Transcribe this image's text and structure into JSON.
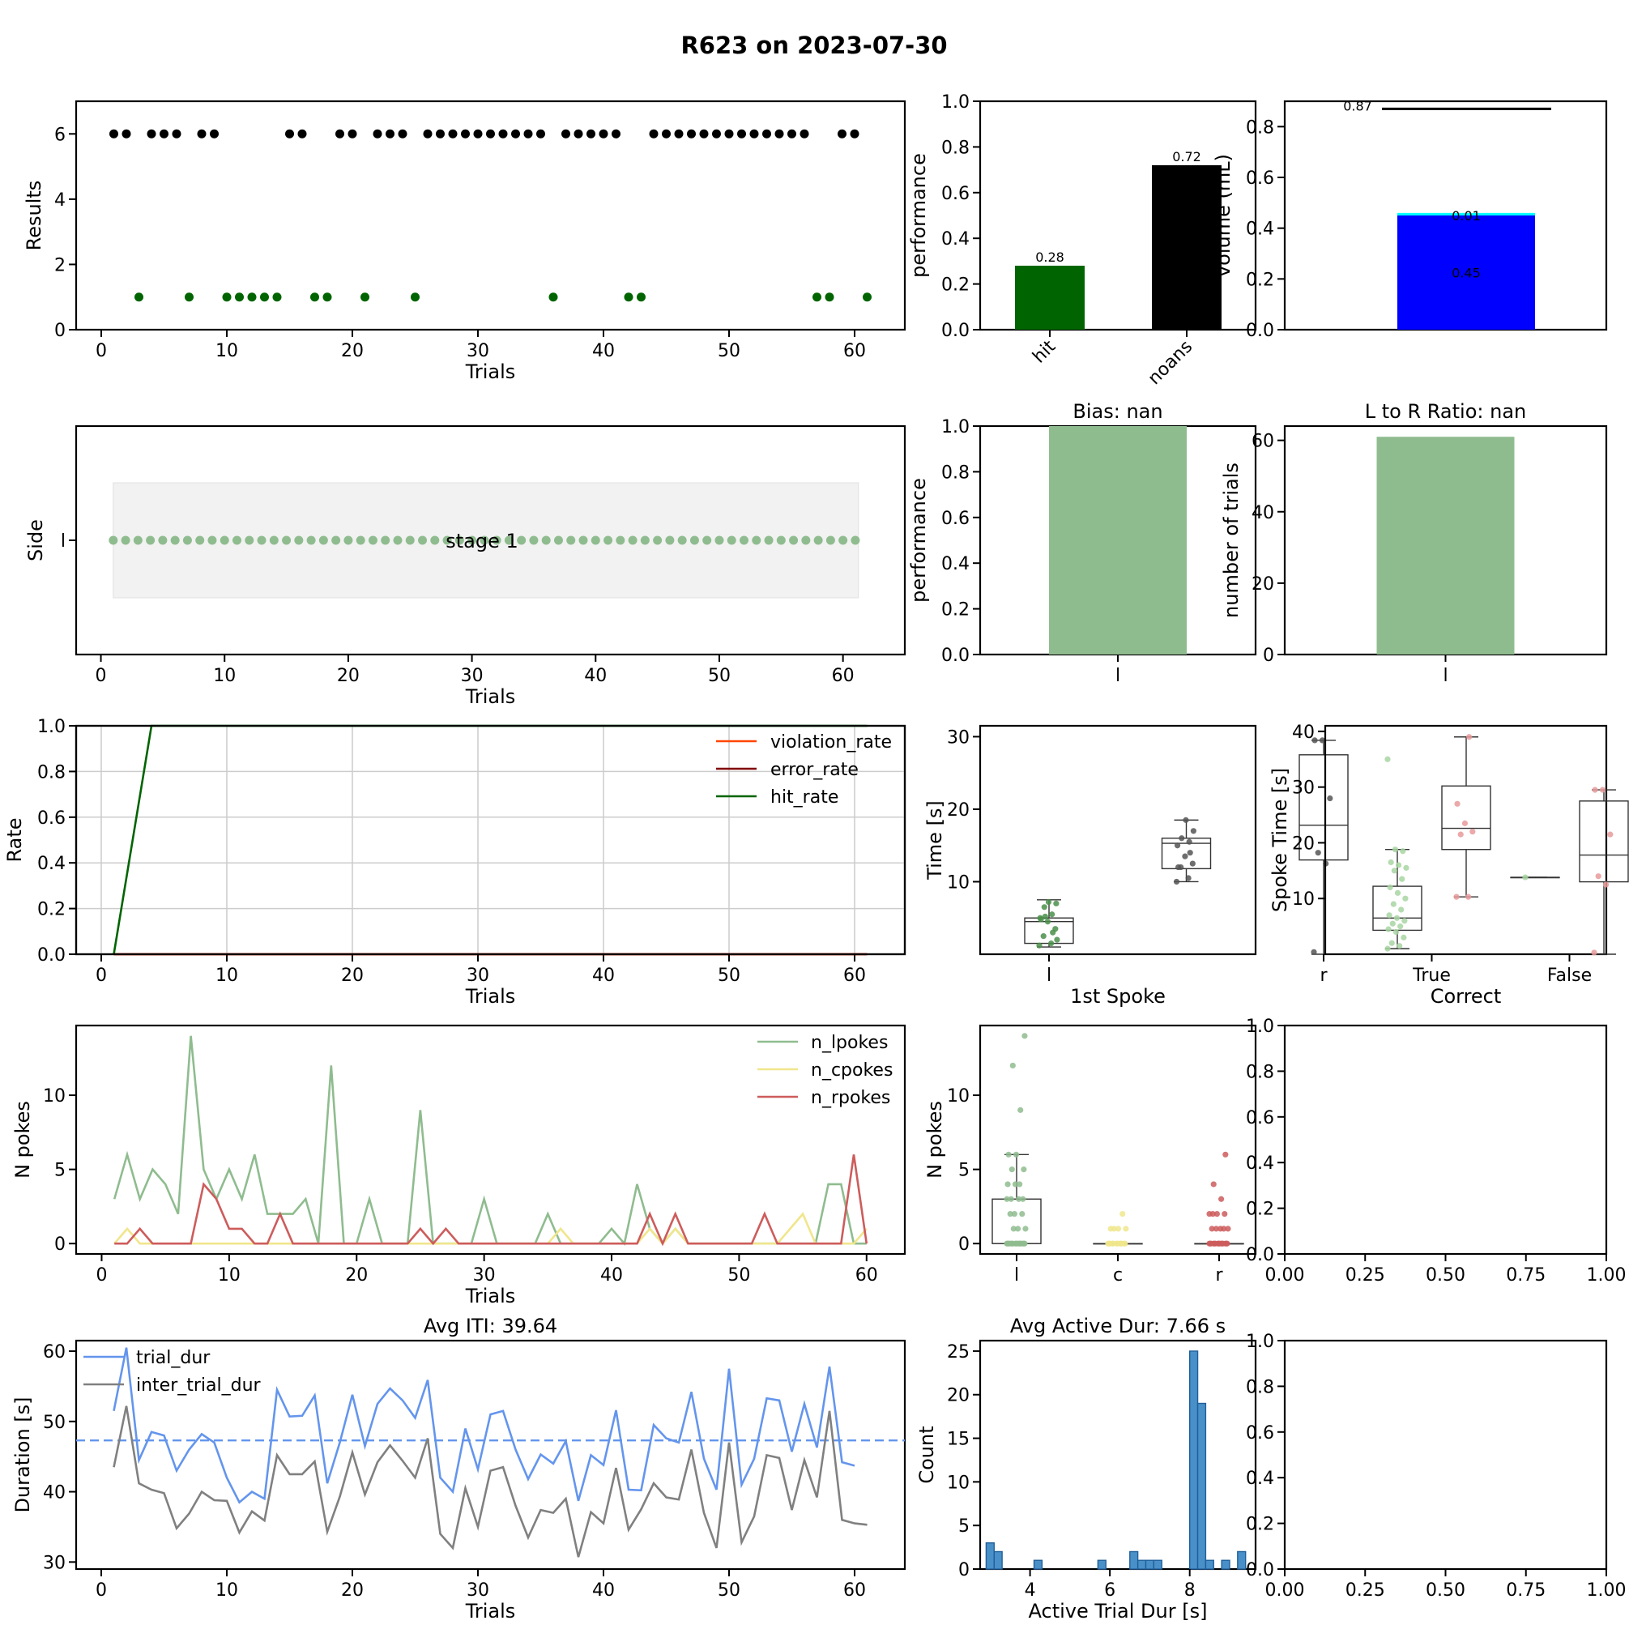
{
  "figure": {
    "title": "R623 on 2023-07-30"
  },
  "chart_data": [
    {
      "id": "results",
      "type": "scatter",
      "xlabel": "Trials",
      "ylabel": "Results",
      "xlim": [
        -2,
        64
      ],
      "ylim": [
        0,
        7
      ],
      "xticks": [
        0,
        10,
        20,
        30,
        40,
        50,
        60
      ],
      "yticks": [
        0,
        2,
        4,
        6
      ],
      "series": [
        {
          "color": "#000000",
          "y": 6,
          "x": [
            1,
            2,
            4,
            5,
            6,
            8,
            9,
            15,
            16,
            19,
            20,
            22,
            23,
            24,
            26,
            27,
            28,
            29,
            30,
            31,
            32,
            33,
            34,
            35,
            37,
            38,
            39,
            40,
            41,
            44,
            45,
            46,
            47,
            48,
            49,
            50,
            51,
            52,
            53,
            54,
            55,
            56,
            59,
            60
          ]
        },
        {
          "color": "#006400",
          "y": 1,
          "x": [
            3,
            7,
            10,
            11,
            12,
            13,
            14,
            17,
            18,
            21,
            25,
            36,
            42,
            43,
            57,
            58,
            61
          ]
        }
      ]
    },
    {
      "id": "performance",
      "type": "bar",
      "ylabel": "performance",
      "categories": [
        "hit",
        "noans"
      ],
      "values": [
        0.28,
        0.72
      ],
      "value_labels": [
        "0.28",
        "0.72"
      ],
      "colors": [
        "#006400",
        "#000000"
      ],
      "ylim": [
        0,
        1
      ],
      "yticks": [
        "0.0",
        "0.2",
        "0.4",
        "0.6",
        "0.8",
        "1.0"
      ]
    },
    {
      "id": "volume",
      "type": "bar",
      "ylabel": "volume (mL)",
      "stack": [
        {
          "value": 0.45,
          "label": "0.45",
          "color": "#0000ff"
        },
        {
          "value": 0.01,
          "label": "0.01",
          "color": "#00ffff"
        }
      ],
      "target": {
        "value": 0.87,
        "label": "0.87"
      },
      "ylim": [
        0,
        0.9
      ],
      "yticks": [
        "0.0",
        "0.2",
        "0.4",
        "0.6",
        "0.8"
      ]
    },
    {
      "id": "side",
      "type": "scatter",
      "xlabel": "Trials",
      "ylabel": "Side",
      "ytick_label": "l",
      "stage_label": "stage 1",
      "x_range": [
        1,
        61
      ],
      "xlim": [
        -2,
        65
      ],
      "xticks": [
        0,
        10,
        20,
        30,
        40,
        50,
        60
      ],
      "color": "#8fbc8f"
    },
    {
      "id": "bias",
      "type": "bar",
      "title": "Bias: nan",
      "ylabel": "performance",
      "categories": [
        "l"
      ],
      "values": [
        1.0
      ],
      "color": "#8fbc8f",
      "ylim": [
        0,
        1
      ],
      "yticks": [
        "0.0",
        "0.2",
        "0.4",
        "0.6",
        "0.8",
        "1.0"
      ]
    },
    {
      "id": "lr_ratio",
      "type": "bar",
      "title": "L to R Ratio: nan",
      "ylabel": "number of trials",
      "categories": [
        "l"
      ],
      "values": [
        61
      ],
      "color": "#8fbc8f",
      "ylim": [
        0,
        64
      ],
      "yticks": [
        "0",
        "20",
        "40",
        "60"
      ]
    },
    {
      "id": "rates",
      "type": "line",
      "xlabel": "Trials",
      "ylabel": "Rate",
      "xlim": [
        -2,
        64
      ],
      "ylim": [
        0,
        1
      ],
      "xticks": [
        0,
        10,
        20,
        30,
        40,
        50,
        60
      ],
      "yticks": [
        "0.0",
        "0.2",
        "0.4",
        "0.6",
        "0.8",
        "1.0"
      ],
      "grid": true,
      "legend": "top-right",
      "series": [
        {
          "name": "violation_rate",
          "color": "#ff4500",
          "x": [
            1,
            61
          ],
          "y": [
            0,
            0
          ]
        },
        {
          "name": "error_rate",
          "color": "#800000",
          "x": [
            1,
            61
          ],
          "y": [
            0,
            0
          ]
        },
        {
          "name": "hit_rate",
          "color": "#006400",
          "x": [
            1,
            4,
            61
          ],
          "y": [
            0,
            1,
            1
          ]
        }
      ]
    },
    {
      "id": "first_spoke_time",
      "type": "box",
      "xlabel": "1st Spoke",
      "ylabel": "Time [s]",
      "categories": [
        "l",
        "r"
      ],
      "ylim": [
        0,
        31.5
      ],
      "yticks": [
        "10",
        "20",
        "30"
      ],
      "boxes": [
        {
          "pos": 0,
          "min": 1.0,
          "q1": 1.5,
          "median": 4.5,
          "q3": 5.0,
          "max": 7.5,
          "color": "#4a8f4a",
          "points": [
            1.2,
            1.5,
            2.5,
            3.5,
            4.5,
            5.0,
            5.5,
            6.5,
            7.0,
            7.2,
            4.8,
            3.0,
            5.2,
            2.0
          ]
        },
        {
          "pos": 0.5,
          "min": 10.0,
          "q1": 11.8,
          "median": 15.3,
          "q3": 16.0,
          "max": 18.5,
          "color": "#555555",
          "points": [
            10.0,
            10.5,
            12.0,
            12.5,
            13.5,
            15.0,
            15.5,
            16.0,
            17.0,
            18.5,
            12.0,
            14.0
          ]
        },
        {
          "pos": 1.0,
          "min": 0.0,
          "q1": 13.0,
          "median": 17.8,
          "q3": 27.5,
          "max": 29.5,
          "color": "#555555",
          "points": [
            0.3,
            12.5,
            14.0,
            21.5,
            29.5,
            29.5
          ]
        }
      ]
    },
    {
      "id": "spoke_time_correct",
      "type": "box",
      "xlabel": "Correct",
      "ylabel": "Spoke Time [s]",
      "categories": [
        "True",
        "False"
      ],
      "ylim": [
        0,
        41
      ],
      "yticks": [
        "10",
        "20",
        "30",
        "40"
      ],
      "boxes": [
        {
          "pos": 0,
          "min": 1.0,
          "q1": 4.3,
          "median": 6.5,
          "q3": 12.2,
          "max": 18.8,
          "color": "#a8d5a2",
          "points": [
            1.0,
            1.5,
            2.0,
            3.0,
            4.0,
            4.5,
            5.0,
            5.5,
            6.0,
            6.5,
            7.0,
            8.0,
            9.0,
            10.0,
            11.0,
            12.0,
            13.5,
            15.0,
            15.5,
            16.0,
            16.5,
            18.5,
            18.8,
            35.0
          ]
        },
        {
          "pos": 0.5,
          "min": 10.3,
          "q1": 18.8,
          "median": 22.6,
          "q3": 30.2,
          "max": 39.0,
          "color": "#e89a9a",
          "points": [
            10.3,
            10.3,
            21.5,
            22.0,
            23.5,
            27.0,
            39.0
          ]
        },
        {
          "pos": 1.0,
          "min": 13.8,
          "q1": 13.8,
          "median": 13.8,
          "q3": 13.8,
          "max": 13.8,
          "color": "#a8d5a2",
          "points": [
            13.8
          ]
        },
        {
          "pos": 1.5,
          "min": 0.0,
          "q1": 13.0,
          "median": 17.8,
          "q3": 27.5,
          "max": 29.5,
          "color": "#e89a9a",
          "points": [
            0.3,
            12.5,
            14.0,
            21.5,
            29.5,
            29.5
          ]
        }
      ]
    },
    {
      "id": "pokes",
      "type": "line",
      "xlabel": "Trials",
      "ylabel": "N pokes",
      "xlim": [
        -2,
        63
      ],
      "ylim": [
        -0.7,
        14.7
      ],
      "xticks": [
        0,
        10,
        20,
        30,
        40,
        50,
        60
      ],
      "yticks": [
        0,
        5,
        10
      ],
      "legend": "top-right",
      "series": [
        {
          "name": "n_lpokes",
          "color": "#8fbc8f",
          "values": [
            3,
            6,
            3,
            5,
            4,
            2,
            14,
            5,
            3,
            5,
            3,
            6,
            2,
            2,
            2,
            3,
            0,
            12,
            0,
            0,
            3,
            0,
            0,
            0,
            9,
            0,
            0,
            0,
            0,
            3,
            0,
            0,
            0,
            0,
            2,
            0,
            0,
            0,
            0,
            1,
            0,
            4,
            1,
            0,
            1,
            0,
            0,
            0,
            0,
            0,
            0,
            0,
            0,
            0,
            0,
            0,
            4,
            4,
            0,
            0
          ]
        },
        {
          "name": "n_cpokes",
          "color": "#f0e68c",
          "values": [
            0,
            1,
            0,
            0,
            0,
            0,
            0,
            0,
            0,
            0,
            0,
            0,
            0,
            0,
            0,
            0,
            0,
            0,
            0,
            0,
            0,
            0,
            0,
            0,
            0,
            0,
            0,
            0,
            0,
            0,
            0,
            0,
            0,
            0,
            0,
            1,
            0,
            0,
            0,
            0,
            0,
            0,
            1,
            0,
            1,
            0,
            0,
            0,
            0,
            0,
            0,
            0,
            0,
            1,
            2,
            0,
            0,
            0,
            0,
            1
          ]
        },
        {
          "name": "n_rpokes",
          "color": "#cd5c5c",
          "values": [
            0,
            0,
            1,
            0,
            0,
            0,
            0,
            4,
            3,
            1,
            1,
            0,
            0,
            2,
            0,
            0,
            0,
            0,
            0,
            0,
            0,
            0,
            0,
            0,
            1,
            0,
            1,
            0,
            0,
            0,
            0,
            0,
            0,
            0,
            0,
            0,
            0,
            0,
            0,
            0,
            0,
            0,
            2,
            0,
            2,
            0,
            0,
            0,
            0,
            0,
            0,
            2,
            0,
            0,
            0,
            0,
            0,
            0,
            6,
            0
          ]
        }
      ]
    },
    {
      "id": "pokes_box",
      "type": "box",
      "ylabel": "N pokes",
      "categories": [
        "l",
        "c",
        "r"
      ],
      "ylim": [
        -0.7,
        14.7
      ],
      "yticks": [
        "0",
        "5",
        "10"
      ],
      "boxes": [
        {
          "pos": 0,
          "min": 0,
          "q1": 0,
          "median": 0,
          "q3": 3,
          "max": 6,
          "color": "#8fbc8f",
          "points": [
            0,
            0,
            0,
            0,
            0,
            0,
            0,
            0,
            0,
            0,
            0,
            0,
            0,
            0,
            0,
            0,
            0,
            1,
            1,
            1,
            2,
            2,
            2,
            3,
            3,
            3,
            3,
            4,
            4,
            4,
            5,
            5,
            6,
            6,
            9,
            12,
            14
          ]
        },
        {
          "pos": 1,
          "min": 0,
          "q1": 0,
          "median": 0,
          "q3": 0,
          "max": 0,
          "color": "#f0e68c",
          "points": [
            0,
            0,
            0,
            0,
            0,
            0,
            0,
            0,
            0,
            0,
            0,
            0,
            1,
            1,
            1,
            1,
            2
          ]
        },
        {
          "pos": 2,
          "min": 0,
          "q1": 0,
          "median": 0,
          "q3": 0,
          "max": 0,
          "color": "#cd5c5c",
          "points": [
            0,
            0,
            0,
            0,
            0,
            0,
            0,
            0,
            0,
            0,
            0,
            0,
            0,
            0,
            0,
            1,
            1,
            1,
            1,
            1,
            2,
            2,
            2,
            2,
            3,
            4,
            6
          ]
        }
      ]
    },
    {
      "id": "empty1",
      "type": "scatter",
      "xlim": [
        0,
        1
      ],
      "ylim": [
        0,
        1
      ],
      "xticks": [
        "0.00",
        "0.25",
        "0.50",
        "0.75",
        "1.00"
      ],
      "yticks": [
        "0.0",
        "0.2",
        "0.4",
        "0.6",
        "0.8",
        "1.0"
      ]
    },
    {
      "id": "durations",
      "type": "line",
      "title": "Avg ITI: 39.64",
      "xlabel": "Trials",
      "ylabel": "Duration [s]",
      "xlim": [
        -2,
        64
      ],
      "ylim": [
        29,
        61.5
      ],
      "xticks": [
        0,
        10,
        20,
        30,
        40,
        50,
        60
      ],
      "yticks": [
        30,
        40,
        50,
        60
      ],
      "legend": "top-left",
      "hline": {
        "value": 47.3,
        "color": "#6495ed"
      },
      "series": [
        {
          "name": "trial_dur",
          "color": "#6495ed",
          "values": [
            51.5,
            60.5,
            44.5,
            48.5,
            48.0,
            43.0,
            46.0,
            48.2,
            47.0,
            42.0,
            38.5,
            40.0,
            39.0,
            54.5,
            50.7,
            50.8,
            53.7,
            41.2,
            47.0,
            53.8,
            46.5,
            52.5,
            54.7,
            53.0,
            50.5,
            55.9,
            42.0,
            40.0,
            49.0,
            43.2,
            51.0,
            51.5,
            46.0,
            41.8,
            45.3,
            44.0,
            47.2,
            38.7,
            45.2,
            43.8,
            51.6,
            40.3,
            40.2,
            49.5,
            47.6,
            47.0,
            54.2,
            44.7,
            40.3,
            57.5,
            41.0,
            44.7,
            53.3,
            53.0,
            45.7,
            52.5,
            46.3,
            57.8,
            44.2,
            43.7
          ]
        },
        {
          "name": "inter_trial_dur",
          "color": "#808080",
          "values": [
            43.5,
            52.2,
            41.2,
            40.3,
            39.8,
            34.8,
            36.9,
            40.0,
            38.8,
            38.7,
            34.2,
            37.2,
            35.9,
            45.2,
            42.5,
            42.5,
            44.3,
            34.3,
            39.3,
            45.6,
            39.6,
            44.2,
            46.6,
            44.4,
            42.0,
            47.6,
            34.0,
            32.0,
            40.5,
            35.0,
            43.0,
            43.5,
            38.0,
            33.5,
            37.4,
            37.0,
            39.0,
            30.7,
            37.1,
            35.5,
            43.4,
            34.6,
            37.5,
            41.2,
            39.2,
            38.9,
            46.0,
            37.0,
            32.0,
            47.0,
            32.8,
            36.5,
            45.2,
            44.8,
            37.4,
            44.5,
            39.2,
            51.5,
            36.0,
            35.5,
            35.3
          ]
        }
      ]
    },
    {
      "id": "active_dur_hist",
      "type": "bar",
      "title": "Avg Active Dur: 7.66 s",
      "xlabel": "Active Trial Dur [s]",
      "ylabel": "Count",
      "xlim": [
        2.75,
        9.65
      ],
      "ylim": [
        0,
        26.2
      ],
      "xticks": [
        4,
        6,
        8
      ],
      "yticks": [
        0,
        5,
        10,
        15,
        20,
        25
      ],
      "bin_width": 0.2,
      "color": "#4a90c8",
      "bins": [
        {
          "x0": 2.9,
          "count": 3
        },
        {
          "x0": 3.1,
          "count": 2
        },
        {
          "x0": 4.1,
          "count": 1
        },
        {
          "x0": 5.7,
          "count": 1
        },
        {
          "x0": 6.5,
          "count": 2
        },
        {
          "x0": 6.7,
          "count": 1
        },
        {
          "x0": 6.9,
          "count": 1
        },
        {
          "x0": 7.1,
          "count": 1
        },
        {
          "x0": 8.0,
          "count": 25
        },
        {
          "x0": 8.2,
          "count": 19
        },
        {
          "x0": 8.4,
          "count": 1
        },
        {
          "x0": 8.8,
          "count": 1
        },
        {
          "x0": 9.2,
          "count": 2
        }
      ]
    },
    {
      "id": "empty2",
      "type": "scatter",
      "xlim": [
        0,
        1
      ],
      "ylim": [
        0,
        1
      ],
      "xticks": [
        "0.00",
        "0.25",
        "0.50",
        "0.75",
        "1.00"
      ],
      "yticks": [
        "0.0",
        "0.2",
        "0.4",
        "0.6",
        "0.8",
        "1.0"
      ]
    }
  ]
}
